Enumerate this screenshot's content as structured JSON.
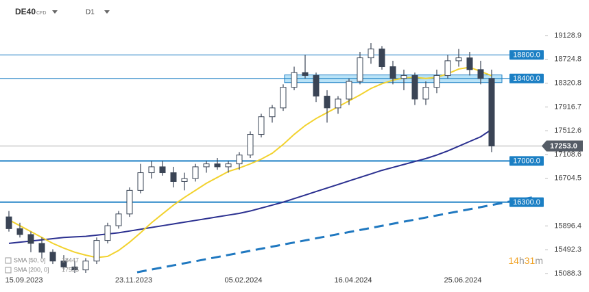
{
  "chart_data": {
    "type": "candlestick",
    "symbol": "DE40",
    "instrument": "CFD",
    "timeframe": "D1",
    "categories": [
      null,
      "15.09.2023",
      null,
      null,
      null,
      null,
      null,
      null,
      null,
      null,
      null,
      "23.11.2023",
      null,
      null,
      null,
      null,
      null,
      null,
      null,
      null,
      null,
      "05.02.2024",
      null,
      null,
      null,
      null,
      null,
      null,
      null,
      null,
      null,
      "16.04.2024",
      null,
      null,
      null,
      null,
      null,
      null,
      null,
      null,
      null,
      "25.06.2024",
      null,
      null,
      null
    ],
    "open": [
      16050,
      15850,
      15750,
      15600,
      15450,
      15300,
      15200,
      15150,
      15300,
      15650,
      15900,
      16100,
      16500,
      16800,
      16900,
      16800,
      16650,
      16700,
      16900,
      16950,
      16900,
      16950,
      17100,
      17450,
      17750,
      17900,
      18250,
      18500,
      18450,
      18100,
      17900,
      18050,
      18350,
      18750,
      18900,
      18600,
      18400,
      18450,
      18050,
      18250,
      18450,
      18700,
      18750,
      18550,
      18400
    ],
    "high": [
      16150,
      15950,
      15800,
      15700,
      15500,
      15400,
      15300,
      15350,
      15700,
      15950,
      16150,
      16550,
      16950,
      17000,
      17000,
      16900,
      16800,
      16950,
      17000,
      17050,
      17000,
      17150,
      17500,
      17800,
      17950,
      18300,
      18600,
      18800,
      18500,
      18200,
      18100,
      18400,
      18850,
      19000,
      18950,
      18700,
      18550,
      18500,
      18350,
      18550,
      18800,
      18900,
      18850,
      18700,
      18550
    ],
    "low": [
      15800,
      15700,
      15450,
      15350,
      15250,
      15150,
      15100,
      15100,
      15250,
      15600,
      15850,
      16050,
      16450,
      16700,
      16750,
      16550,
      16500,
      16650,
      16800,
      16850,
      16800,
      16850,
      17050,
      17400,
      17650,
      17850,
      18200,
      18400,
      18000,
      17650,
      17800,
      17950,
      18300,
      18650,
      18550,
      18300,
      18200,
      17950,
      17950,
      18150,
      18400,
      18600,
      18450,
      18300,
      17150
    ],
    "close": [
      15850,
      15750,
      15600,
      15450,
      15300,
      15200,
      15150,
      15300,
      15650,
      15900,
      16100,
      16500,
      16800,
      16900,
      16800,
      16650,
      16700,
      16900,
      16950,
      16900,
      16950,
      17100,
      17450,
      17750,
      17900,
      18250,
      18500,
      18450,
      18100,
      17900,
      18050,
      18350,
      18750,
      18900,
      18600,
      18400,
      18450,
      18050,
      18250,
      18450,
      18700,
      18750,
      18550,
      18400,
      17253
    ],
    "candle_color": "#3a4455",
    "series": [
      {
        "name": "SMA [200, 0]",
        "color": "#2b3090",
        "values": [
          15600,
          15620,
          15640,
          15660,
          15680,
          15700,
          15710,
          15720,
          15740,
          15760,
          15780,
          15810,
          15840,
          15870,
          15900,
          15930,
          15960,
          15990,
          16020,
          16050,
          16080,
          16110,
          16150,
          16200,
          16250,
          16300,
          16360,
          16420,
          16480,
          16540,
          16600,
          16660,
          16720,
          16780,
          16840,
          16890,
          16940,
          16990,
          17040,
          17100,
          17170,
          17250,
          17330,
          17410,
          17535
        ]
      },
      {
        "name": "SMA [50, 0]",
        "color": "#f2d22e",
        "values": [
          16000,
          15900,
          15800,
          15700,
          15600,
          15520,
          15450,
          15400,
          15360,
          15380,
          15480,
          15620,
          15780,
          15950,
          16100,
          16250,
          16380,
          16500,
          16620,
          16720,
          16820,
          16880,
          16950,
          17030,
          17130,
          17280,
          17450,
          17600,
          17720,
          17820,
          17920,
          18020,
          18120,
          18230,
          18310,
          18370,
          18410,
          18420,
          18400,
          18420,
          18480,
          18560,
          18590,
          18520,
          18447
        ]
      }
    ],
    "levels": [
      {
        "value": 18800,
        "label": "18800.0",
        "color": "#1b7fc4"
      },
      {
        "value": 18400,
        "label": "18400.0",
        "color": "#1b7fc4",
        "zone": [
          18330,
          18460
        ]
      },
      {
        "value": 17000,
        "label": "17000.0",
        "color": "#1b7fc4"
      },
      {
        "value": 16300,
        "label": "16300.0",
        "color": "#1b7fc4"
      }
    ],
    "last_price": {
      "value": 17253,
      "label": "17253.0",
      "color": "#555c66"
    },
    "trendline": {
      "start": 15110,
      "end": 16390,
      "color": "#1f78c0"
    },
    "ylim": [
      15030,
      19732
    ],
    "yticks": [
      19128.9,
      18724.8,
      18320.8,
      17916.7,
      17512.6,
      17108.6,
      16704.5,
      15896.4,
      15492.3,
      15088.3
    ],
    "countdown": [
      "14",
      "h",
      "31",
      "m"
    ]
  }
}
